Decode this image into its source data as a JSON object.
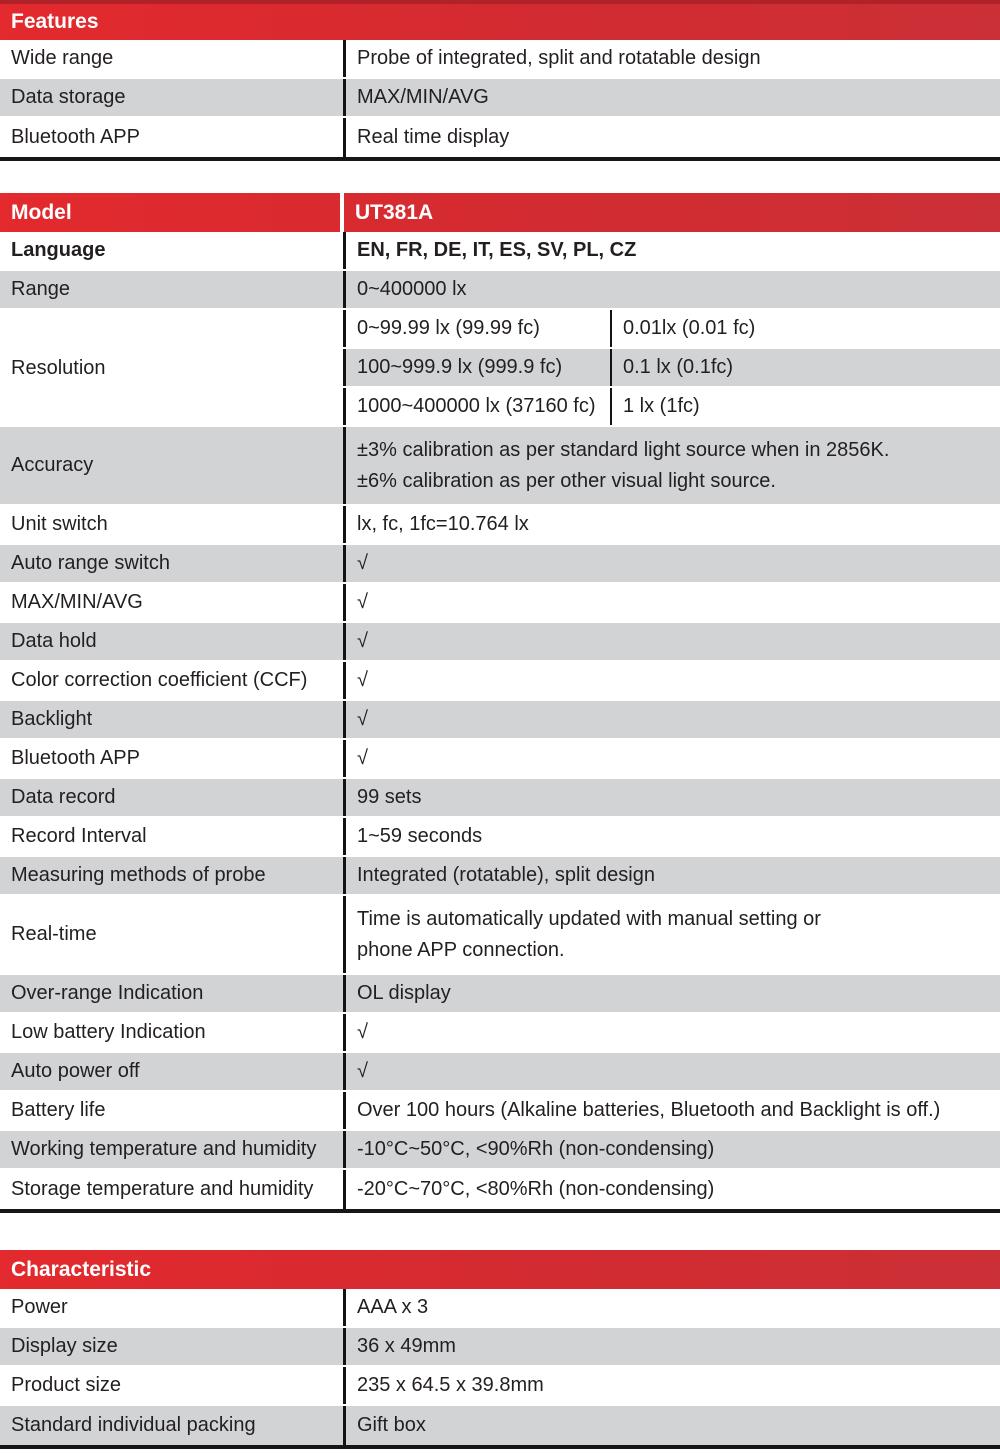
{
  "colors": {
    "header_red": "#d22b31",
    "header_red_dark_edge": "#b02227",
    "row_gray": "#d1d3d4",
    "row_white": "#ffffff",
    "text_dark": "#231f20",
    "divider_black": "#131313"
  },
  "check_mark": "√",
  "features": {
    "title": "Features",
    "rows": [
      {
        "label": "Wide range",
        "value": "Probe of integrated, split and rotatable design"
      },
      {
        "label": "Data storage",
        "value": "MAX/MIN/AVG"
      },
      {
        "label": "Bluetooth APP",
        "value": "Real time display"
      }
    ]
  },
  "model": {
    "title": "Model",
    "model_name": "UT381A",
    "rows": [
      {
        "label": "Language",
        "value": "EN, FR, DE, IT, ES, SV, PL, CZ",
        "bold": true
      },
      {
        "label": "Range",
        "value": "0~400000 lx"
      },
      {
        "label": "Resolution",
        "sub": [
          [
            "0~99.99 lx (99.99 fc)",
            "0.01lx (0.01 fc)"
          ],
          [
            "100~999.9 lx (999.9 fc)",
            "0.1 lx (0.1fc)"
          ],
          [
            "1000~400000 lx (37160 fc)",
            "1 lx (1fc)"
          ]
        ]
      },
      {
        "label": "Accuracy",
        "lines": [
          "±3% calibration as per standard light source when in 2856K.",
          "±6% calibration as per other visual light source."
        ]
      },
      {
        "label": "Unit switch",
        "value": "lx, fc, 1fc=10.764 lx"
      },
      {
        "label": "Auto range switch",
        "value": "√"
      },
      {
        "label": "MAX/MIN/AVG",
        "value": "√"
      },
      {
        "label": "Data hold",
        "value": "√"
      },
      {
        "label": "Color correction coefficient (CCF)",
        "value": "√"
      },
      {
        "label": "Backlight",
        "value": "√"
      },
      {
        "label": "Bluetooth APP",
        "value": "√"
      },
      {
        "label": "Data record",
        "value": "99 sets"
      },
      {
        "label": "Record Interval",
        "value": "1~59 seconds"
      },
      {
        "label": "Measuring methods of probe",
        "value": "Integrated (rotatable), split design"
      },
      {
        "label": "Real-time",
        "lines": [
          "Time is automatically updated with manual setting or",
          "phone APP connection."
        ]
      },
      {
        "label": "Over-range Indication",
        "value": "OL display"
      },
      {
        "label": "Low battery Indication",
        "value": "√"
      },
      {
        "label": "Auto power off",
        "value": "√"
      },
      {
        "label": "Battery life",
        "value": "Over 100 hours (Alkaline batteries, Bluetooth and Backlight is off.)"
      },
      {
        "label": "Working temperature and humidity",
        "value": "-10°C~50°C, <90%Rh (non-condensing)"
      },
      {
        "label": "Storage temperature and humidity",
        "value": "-20°C~70°C, <80%Rh (non-condensing)"
      }
    ]
  },
  "characteristic": {
    "title": "Characteristic",
    "rows": [
      {
        "label": "Power",
        "value": "AAA x 3"
      },
      {
        "label": "Display size",
        "value": "36 x 49mm"
      },
      {
        "label": "Product size",
        "value": "235 x 64.5 x 39.8mm"
      },
      {
        "label": "Standard individual packing",
        "value": "Gift box"
      }
    ]
  }
}
